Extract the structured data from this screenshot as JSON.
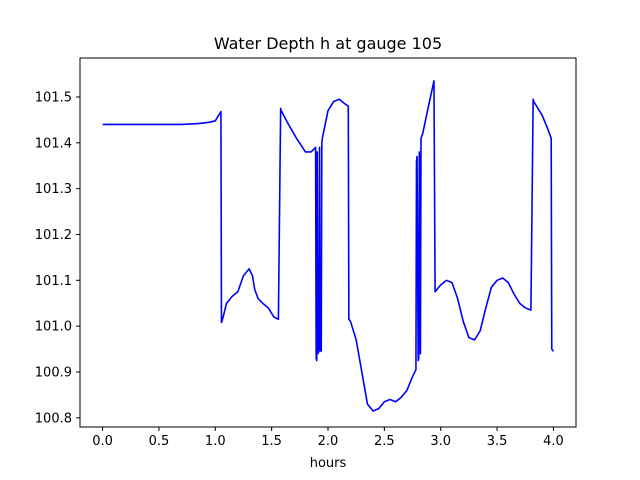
{
  "chart_data": {
    "type": "line",
    "title": "Water Depth h at gauge 105",
    "xlabel": "hours",
    "ylabel": "",
    "xlim": [
      -0.2,
      4.2
    ],
    "ylim": [
      100.78,
      101.585
    ],
    "xticks": [
      0.0,
      0.5,
      1.0,
      1.5,
      2.0,
      2.5,
      3.0,
      3.5,
      4.0
    ],
    "xtick_labels": [
      "0.0",
      "0.5",
      "1.0",
      "1.5",
      "2.0",
      "2.5",
      "3.0",
      "3.5",
      "4.0"
    ],
    "yticks": [
      100.8,
      100.9,
      101.0,
      101.1,
      101.2,
      101.3,
      101.4,
      101.5
    ],
    "ytick_labels": [
      "100.8",
      "100.9",
      "101.0",
      "101.1",
      "101.2",
      "101.3",
      "101.4",
      "101.5"
    ],
    "grid": false,
    "series": [
      {
        "color": "#0000ff",
        "x": [
          0.0,
          0.5,
          0.7,
          0.85,
          0.95,
          1.0,
          1.03,
          1.05,
          1.055,
          1.07,
          1.1,
          1.15,
          1.2,
          1.25,
          1.3,
          1.33,
          1.35,
          1.38,
          1.42,
          1.47,
          1.52,
          1.56,
          1.58,
          1.585,
          1.65,
          1.72,
          1.8,
          1.85,
          1.89,
          1.895,
          1.9,
          1.905,
          1.91,
          1.92,
          1.925,
          1.93,
          1.94,
          1.945,
          1.95,
          2.0,
          2.05,
          2.1,
          2.15,
          2.18,
          2.185,
          2.2,
          2.25,
          2.3,
          2.35,
          2.4,
          2.45,
          2.5,
          2.55,
          2.6,
          2.65,
          2.7,
          2.75,
          2.78,
          2.785,
          2.79,
          2.8,
          2.805,
          2.81,
          2.82,
          2.825,
          2.84,
          2.9,
          2.94,
          2.95,
          3.0,
          3.05,
          3.1,
          3.15,
          3.2,
          3.25,
          3.3,
          3.35,
          3.4,
          3.45,
          3.5,
          3.55,
          3.6,
          3.65,
          3.7,
          3.75,
          3.8,
          3.82,
          3.825,
          3.85,
          3.9,
          3.95,
          3.98,
          3.985,
          4.0
        ],
        "y": [
          101.44,
          101.44,
          101.44,
          101.442,
          101.445,
          101.448,
          101.46,
          101.468,
          101.008,
          101.02,
          101.05,
          101.065,
          101.075,
          101.11,
          101.125,
          101.11,
          101.08,
          101.06,
          101.05,
          101.04,
          101.02,
          101.015,
          101.475,
          101.47,
          101.44,
          101.41,
          101.38,
          101.38,
          101.39,
          100.93,
          100.925,
          101.38,
          100.94,
          100.945,
          101.39,
          100.95,
          100.945,
          101.4,
          101.41,
          101.47,
          101.49,
          101.495,
          101.485,
          101.48,
          101.015,
          101.01,
          100.97,
          100.9,
          100.83,
          100.815,
          100.82,
          100.835,
          100.84,
          100.835,
          100.845,
          100.86,
          100.89,
          100.905,
          101.36,
          101.37,
          100.925,
          100.93,
          101.38,
          100.94,
          101.41,
          101.42,
          101.49,
          101.535,
          101.075,
          101.09,
          101.1,
          101.095,
          101.06,
          101.01,
          100.975,
          100.97,
          100.99,
          101.04,
          101.085,
          101.1,
          101.105,
          101.095,
          101.07,
          101.05,
          101.04,
          101.035,
          101.495,
          101.49,
          101.48,
          101.46,
          101.43,
          101.41,
          100.95,
          100.945
        ]
      }
    ]
  }
}
